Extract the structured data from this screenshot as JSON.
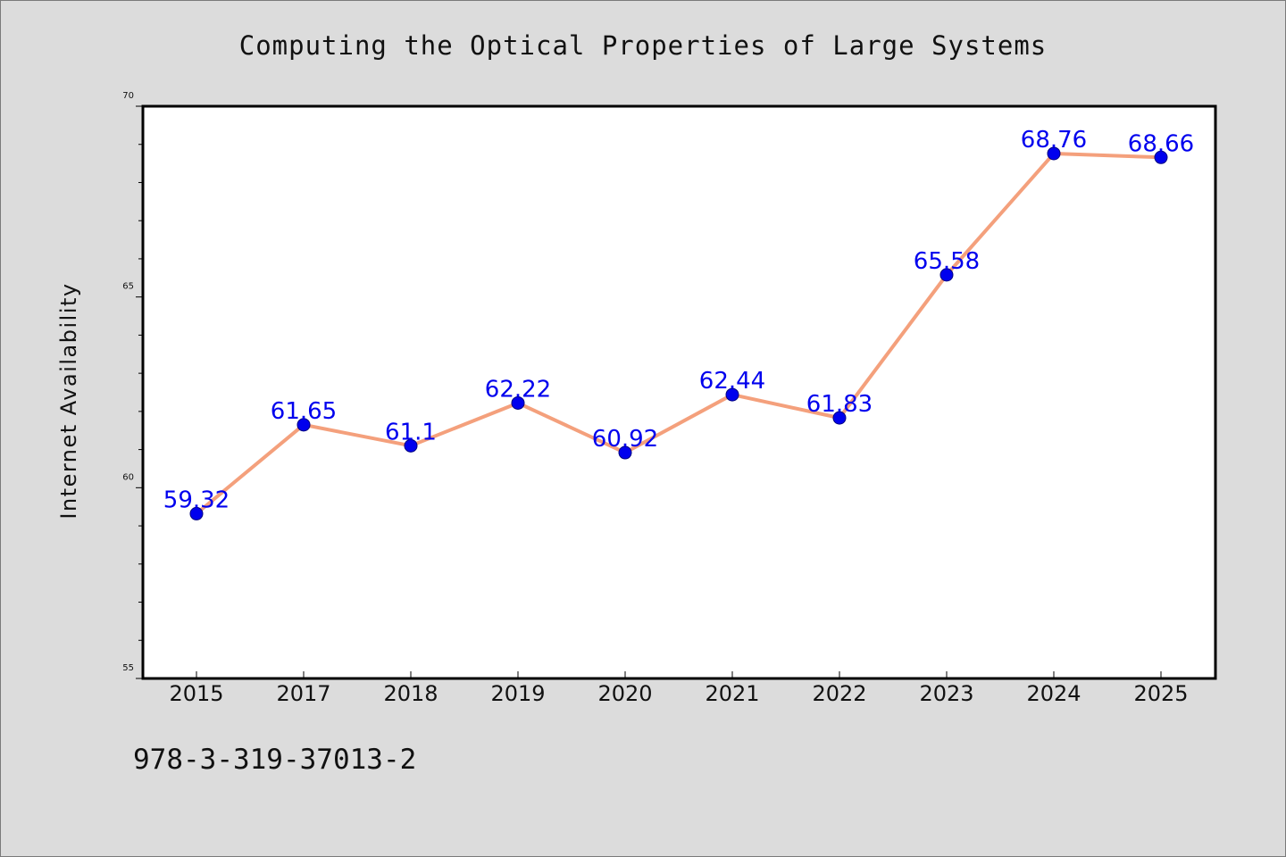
{
  "chart_data": {
    "type": "line",
    "title": "Computing the Optical Properties of Large Systems",
    "xlabel": "",
    "ylabel": "Internet Availability",
    "categories": [
      "2015",
      "2017",
      "2018",
      "2019",
      "2020",
      "2021",
      "2022",
      "2023",
      "2024",
      "2025"
    ],
    "values": [
      59.32,
      61.65,
      61.1,
      62.22,
      60.92,
      62.44,
      61.83,
      65.58,
      68.76,
      68.66
    ],
    "data_labels": [
      "59.32",
      "61.65",
      "61.1",
      "62.22",
      "60.92",
      "62.44",
      "61.83",
      "65.58",
      "68.76",
      "68.66"
    ],
    "ylim": [
      55,
      70
    ],
    "yticks": [
      55,
      60,
      65,
      70
    ],
    "grid": false,
    "legend": "none",
    "colors": {
      "line": "#f4a07c",
      "marker": "#0000ee",
      "data_label": "#0000ee",
      "background": "#dcdcdc",
      "plot_background": "#ffffff"
    }
  },
  "footer": {
    "isbn": "978-3-319-37013-2"
  }
}
